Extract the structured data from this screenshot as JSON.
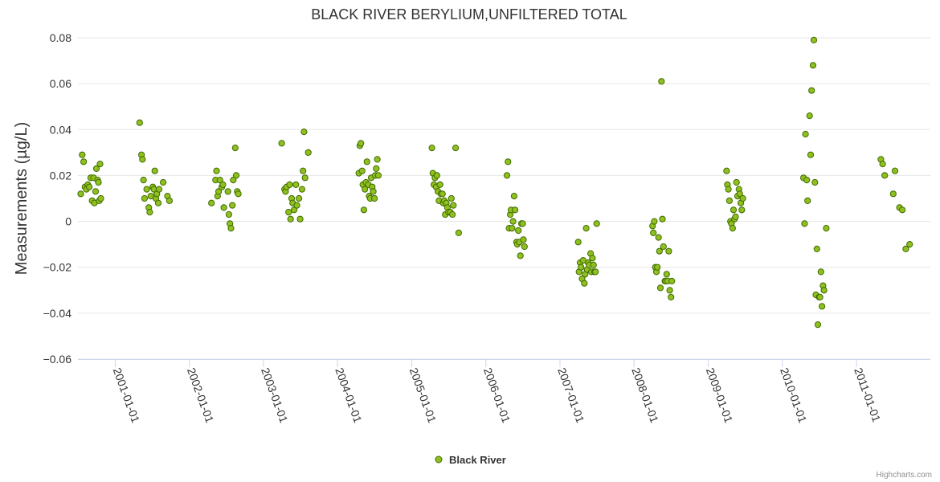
{
  "chart_data": {
    "type": "scatter",
    "title": "BLACK RIVER BERYLIUM,UNFILTERED TOTAL",
    "ylabel": "Measurements (µg/L)",
    "xlabel": "",
    "ylim": [
      -0.06,
      0.08
    ],
    "yticks": [
      0.08,
      0.06,
      0.04,
      0.02,
      0,
      -0.02,
      -0.04,
      -0.06
    ],
    "ytick_labels": [
      "0.08",
      "0.06",
      "0.04",
      "0.02",
      "0",
      "−0.02",
      "−0.04",
      "−0.06"
    ],
    "xlim": [
      "2000-07-01",
      "2011-12-31"
    ],
    "xticks": [
      "2001-01-01",
      "2002-01-01",
      "2003-01-01",
      "2004-01-01",
      "2005-01-01",
      "2006-01-01",
      "2007-01-01",
      "2008-01-01",
      "2009-01-01",
      "2010-01-01",
      "2011-01-01"
    ],
    "grid": true,
    "legend_position": "bottom-center",
    "colors": {
      "marker_fill": "#90c020",
      "marker_stroke": "#3f6b00"
    },
    "series": [
      {
        "name": "Black River",
        "points": [
          [
            "2000-07-15",
            0.012
          ],
          [
            "2000-07-22",
            0.029
          ],
          [
            "2000-07-29",
            0.026
          ],
          [
            "2000-08-05",
            0.015
          ],
          [
            "2000-08-12",
            0.014
          ],
          [
            "2000-08-19",
            0.016
          ],
          [
            "2000-08-26",
            0.015
          ],
          [
            "2000-09-02",
            0.019
          ],
          [
            "2000-09-09",
            0.009
          ],
          [
            "2000-09-16",
            0.019
          ],
          [
            "2000-09-20",
            0.008
          ],
          [
            "2000-09-26",
            0.013
          ],
          [
            "2000-09-30",
            0.023
          ],
          [
            "2000-10-06",
            0.018
          ],
          [
            "2000-10-10",
            0.017
          ],
          [
            "2000-10-14",
            0.009
          ],
          [
            "2000-10-18",
            0.025
          ],
          [
            "2000-10-22",
            0.01
          ],
          [
            "2001-05-01",
            0.043
          ],
          [
            "2001-05-10",
            0.029
          ],
          [
            "2001-05-15",
            0.027
          ],
          [
            "2001-05-20",
            0.018
          ],
          [
            "2001-05-25",
            0.01
          ],
          [
            "2001-06-05",
            0.014
          ],
          [
            "2001-06-15",
            0.006
          ],
          [
            "2001-06-20",
            0.004
          ],
          [
            "2001-06-25",
            0.011
          ],
          [
            "2001-07-05",
            0.015
          ],
          [
            "2001-07-10",
            0.014
          ],
          [
            "2001-07-15",
            0.022
          ],
          [
            "2001-07-20",
            0.01
          ],
          [
            "2001-07-25",
            0.012
          ],
          [
            "2001-08-01",
            0.008
          ],
          [
            "2001-08-05",
            0.014
          ],
          [
            "2001-08-25",
            0.017
          ],
          [
            "2001-09-15",
            0.011
          ],
          [
            "2001-09-25",
            0.009
          ],
          [
            "2002-04-20",
            0.008
          ],
          [
            "2002-05-10",
            0.018
          ],
          [
            "2002-05-15",
            0.022
          ],
          [
            "2002-05-20",
            0.011
          ],
          [
            "2002-05-25",
            0.013
          ],
          [
            "2002-06-01",
            0.018
          ],
          [
            "2002-06-10",
            0.015
          ],
          [
            "2002-06-15",
            0.016
          ],
          [
            "2002-06-20",
            0.006
          ],
          [
            "2002-07-10",
            0.013
          ],
          [
            "2002-07-15",
            0.003
          ],
          [
            "2002-07-20",
            -0.001
          ],
          [
            "2002-07-25",
            -0.003
          ],
          [
            "2002-08-01",
            0.007
          ],
          [
            "2002-08-05",
            0.018
          ],
          [
            "2002-08-15",
            0.032
          ],
          [
            "2002-08-20",
            0.02
          ],
          [
            "2002-08-25",
            0.013
          ],
          [
            "2002-08-30",
            0.012
          ],
          [
            "2003-04-01",
            0.034
          ],
          [
            "2003-04-15",
            0.014
          ],
          [
            "2003-04-20",
            0.013
          ],
          [
            "2003-04-25",
            0.015
          ],
          [
            "2003-05-05",
            0.004
          ],
          [
            "2003-05-10",
            0.016
          ],
          [
            "2003-05-15",
            0.001
          ],
          [
            "2003-05-20",
            0.01
          ],
          [
            "2003-05-25",
            0.008
          ],
          [
            "2003-06-01",
            0.005
          ],
          [
            "2003-06-10",
            0.016
          ],
          [
            "2003-06-15",
            0.007
          ],
          [
            "2003-06-25",
            0.01
          ],
          [
            "2003-07-01",
            0.001
          ],
          [
            "2003-07-10",
            0.014
          ],
          [
            "2003-07-15",
            0.022
          ],
          [
            "2003-07-20",
            0.039
          ],
          [
            "2003-07-25",
            0.019
          ],
          [
            "2003-08-10",
            0.03
          ],
          [
            "2004-04-15",
            0.021
          ],
          [
            "2004-04-20",
            0.033
          ],
          [
            "2004-04-25",
            0.034
          ],
          [
            "2004-05-01",
            0.022
          ],
          [
            "2004-05-05",
            0.016
          ],
          [
            "2004-05-10",
            0.005
          ],
          [
            "2004-05-15",
            0.014
          ],
          [
            "2004-05-20",
            0.017
          ],
          [
            "2004-05-25",
            0.026
          ],
          [
            "2004-06-01",
            0.016
          ],
          [
            "2004-06-05",
            0.011
          ],
          [
            "2004-06-10",
            0.01
          ],
          [
            "2004-06-15",
            0.019
          ],
          [
            "2004-06-20",
            0.015
          ],
          [
            "2004-06-25",
            0.013
          ],
          [
            "2004-07-01",
            0.01
          ],
          [
            "2004-07-05",
            0.02
          ],
          [
            "2004-07-10",
            0.023
          ],
          [
            "2004-07-15",
            0.027
          ],
          [
            "2004-07-20",
            0.02
          ],
          [
            "2005-04-10",
            0.032
          ],
          [
            "2005-04-15",
            0.021
          ],
          [
            "2005-04-20",
            0.016
          ],
          [
            "2005-04-25",
            0.019
          ],
          [
            "2005-05-01",
            0.015
          ],
          [
            "2005-05-05",
            0.02
          ],
          [
            "2005-05-10",
            0.013
          ],
          [
            "2005-05-15",
            0.009
          ],
          [
            "2005-05-20",
            0.016
          ],
          [
            "2005-05-25",
            0.012
          ],
          [
            "2005-06-01",
            0.012
          ],
          [
            "2005-06-05",
            0.008
          ],
          [
            "2005-06-10",
            0.009
          ],
          [
            "2005-06-15",
            0.003
          ],
          [
            "2005-06-20",
            0.008
          ],
          [
            "2005-06-25",
            0.006
          ],
          [
            "2005-07-01",
            0.004
          ],
          [
            "2005-07-10",
            0.004
          ],
          [
            "2005-07-15",
            0.01
          ],
          [
            "2005-07-20",
            0.003
          ],
          [
            "2005-07-25",
            0.007
          ],
          [
            "2005-08-05",
            0.032
          ],
          [
            "2005-08-20",
            -0.005
          ],
          [
            "2006-04-15",
            0.02
          ],
          [
            "2006-04-20",
            0.026
          ],
          [
            "2006-04-25",
            -0.003
          ],
          [
            "2006-05-01",
            0.003
          ],
          [
            "2006-05-05",
            0.005
          ],
          [
            "2006-05-10",
            -0.003
          ],
          [
            "2006-05-15",
            0.0
          ],
          [
            "2006-05-20",
            0.011
          ],
          [
            "2006-05-25",
            0.005
          ],
          [
            "2006-06-01",
            -0.009
          ],
          [
            "2006-06-05",
            -0.01
          ],
          [
            "2006-06-10",
            -0.004
          ],
          [
            "2006-06-15",
            -0.009
          ],
          [
            "2006-06-20",
            -0.015
          ],
          [
            "2006-06-25",
            -0.001
          ],
          [
            "2006-07-01",
            -0.001
          ],
          [
            "2006-07-05",
            -0.008
          ],
          [
            "2006-07-10",
            -0.011
          ],
          [
            "2007-04-01",
            -0.009
          ],
          [
            "2007-04-05",
            -0.022
          ],
          [
            "2007-04-10",
            -0.018
          ],
          [
            "2007-04-15",
            -0.02
          ],
          [
            "2007-04-20",
            -0.025
          ],
          [
            "2007-04-25",
            -0.017
          ],
          [
            "2007-05-01",
            -0.027
          ],
          [
            "2007-05-05",
            -0.023
          ],
          [
            "2007-05-10",
            -0.003
          ],
          [
            "2007-05-15",
            -0.021
          ],
          [
            "2007-05-20",
            -0.018
          ],
          [
            "2007-05-25",
            -0.019
          ],
          [
            "2007-06-01",
            -0.014
          ],
          [
            "2007-06-05",
            -0.022
          ],
          [
            "2007-06-10",
            -0.016
          ],
          [
            "2007-06-15",
            -0.019
          ],
          [
            "2007-06-20",
            -0.022
          ],
          [
            "2007-06-25",
            -0.022
          ],
          [
            "2007-07-01",
            -0.001
          ],
          [
            "2008-04-01",
            -0.002
          ],
          [
            "2008-04-05",
            -0.005
          ],
          [
            "2008-04-10",
            0.0
          ],
          [
            "2008-04-15",
            -0.02
          ],
          [
            "2008-04-20",
            -0.022
          ],
          [
            "2008-04-25",
            -0.02
          ],
          [
            "2008-05-01",
            -0.007
          ],
          [
            "2008-05-05",
            -0.013
          ],
          [
            "2008-05-10",
            -0.029
          ],
          [
            "2008-05-15",
            0.061
          ],
          [
            "2008-05-20",
            0.001
          ],
          [
            "2008-05-25",
            -0.011
          ],
          [
            "2008-06-01",
            -0.026
          ],
          [
            "2008-06-05",
            -0.026
          ],
          [
            "2008-06-10",
            -0.023
          ],
          [
            "2008-06-15",
            -0.026
          ],
          [
            "2008-06-20",
            -0.013
          ],
          [
            "2008-06-25",
            -0.03
          ],
          [
            "2008-07-01",
            -0.033
          ],
          [
            "2008-07-05",
            -0.026
          ],
          [
            "2009-04-01",
            0.022
          ],
          [
            "2009-04-05",
            0.016
          ],
          [
            "2009-04-10",
            0.014
          ],
          [
            "2009-04-15",
            0.009
          ],
          [
            "2009-04-20",
            0.0
          ],
          [
            "2009-04-25",
            -0.001
          ],
          [
            "2009-05-01",
            -0.003
          ],
          [
            "2009-05-05",
            0.005
          ],
          [
            "2009-05-10",
            0.001
          ],
          [
            "2009-05-15",
            0.002
          ],
          [
            "2009-05-20",
            0.017
          ],
          [
            "2009-05-25",
            0.011
          ],
          [
            "2009-06-01",
            0.014
          ],
          [
            "2009-06-05",
            0.012
          ],
          [
            "2009-06-10",
            0.008
          ],
          [
            "2009-06-15",
            0.005
          ],
          [
            "2009-06-20",
            0.01
          ],
          [
            "2010-04-15",
            0.019
          ],
          [
            "2010-04-20",
            -0.001
          ],
          [
            "2010-04-25",
            0.038
          ],
          [
            "2010-05-01",
            0.018
          ],
          [
            "2010-05-05",
            0.009
          ],
          [
            "2010-05-15",
            0.046
          ],
          [
            "2010-05-20",
            0.029
          ],
          [
            "2010-05-25",
            0.057
          ],
          [
            "2010-06-01",
            0.068
          ],
          [
            "2010-06-05",
            0.079
          ],
          [
            "2010-06-10",
            0.017
          ],
          [
            "2010-06-15",
            -0.032
          ],
          [
            "2010-06-20",
            -0.012
          ],
          [
            "2010-06-25",
            -0.045
          ],
          [
            "2010-07-01",
            -0.033
          ],
          [
            "2010-07-05",
            -0.033
          ],
          [
            "2010-07-10",
            -0.022
          ],
          [
            "2010-07-15",
            -0.037
          ],
          [
            "2010-07-20",
            -0.028
          ],
          [
            "2010-07-25",
            -0.03
          ],
          [
            "2010-08-05",
            -0.003
          ],
          [
            "2011-05-01",
            0.027
          ],
          [
            "2011-05-10",
            0.025
          ],
          [
            "2011-05-20",
            0.02
          ],
          [
            "2011-07-01",
            0.012
          ],
          [
            "2011-07-10",
            0.022
          ],
          [
            "2011-08-01",
            0.006
          ],
          [
            "2011-08-15",
            0.005
          ],
          [
            "2011-09-01",
            -0.012
          ],
          [
            "2011-09-20",
            -0.01
          ]
        ]
      }
    ]
  },
  "credits": "Highcharts.com"
}
